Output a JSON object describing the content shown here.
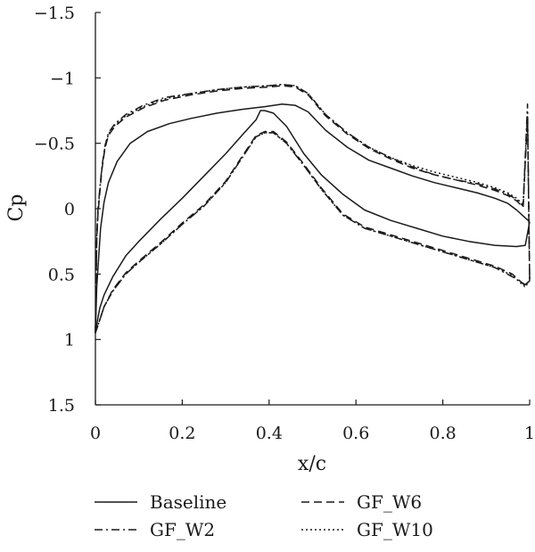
{
  "chart_data": {
    "type": "line",
    "xlabel": "x/c",
    "ylabel": "Cp",
    "xlim": [
      0,
      1
    ],
    "ylim": [
      1.5,
      -1.5
    ],
    "y_inverted": true,
    "xticks": [
      "0",
      "0.2",
      "0.4",
      "0.6",
      "0.8",
      "1"
    ],
    "yticks": [
      "−1.5",
      "−1",
      "−0.5",
      "0",
      "0.5",
      "1",
      "1.5"
    ],
    "grid": false,
    "legend_position": "bottom",
    "series": [
      {
        "name": "Baseline",
        "dash": "solid",
        "upper": [
          [
            0,
            0.95
          ],
          [
            0.003,
            0.6
          ],
          [
            0.007,
            0.4
          ],
          [
            0.012,
            0.15
          ],
          [
            0.02,
            -0.05
          ],
          [
            0.03,
            -0.2
          ],
          [
            0.05,
            -0.36
          ],
          [
            0.08,
            -0.5
          ],
          [
            0.12,
            -0.59
          ],
          [
            0.17,
            -0.65
          ],
          [
            0.22,
            -0.69
          ],
          [
            0.28,
            -0.73
          ],
          [
            0.34,
            -0.76
          ],
          [
            0.39,
            -0.78
          ],
          [
            0.43,
            -0.8
          ],
          [
            0.46,
            -0.79
          ],
          [
            0.49,
            -0.74
          ],
          [
            0.53,
            -0.6
          ],
          [
            0.58,
            -0.47
          ],
          [
            0.63,
            -0.37
          ],
          [
            0.68,
            -0.31
          ],
          [
            0.73,
            -0.25
          ],
          [
            0.78,
            -0.2
          ],
          [
            0.83,
            -0.16
          ],
          [
            0.88,
            -0.12
          ],
          [
            0.92,
            -0.08
          ],
          [
            0.95,
            -0.04
          ],
          [
            0.97,
            0.01
          ],
          [
            0.99,
            0.07
          ],
          [
            1,
            0.1
          ]
        ],
        "lower": [
          [
            0,
            0.95
          ],
          [
            0.005,
            0.85
          ],
          [
            0.01,
            0.76
          ],
          [
            0.02,
            0.66
          ],
          [
            0.04,
            0.52
          ],
          [
            0.07,
            0.36
          ],
          [
            0.1,
            0.25
          ],
          [
            0.15,
            0.08
          ],
          [
            0.2,
            -0.08
          ],
          [
            0.25,
            -0.25
          ],
          [
            0.3,
            -0.42
          ],
          [
            0.34,
            -0.57
          ],
          [
            0.37,
            -0.68
          ],
          [
            0.38,
            -0.75
          ],
          [
            0.39,
            -0.75
          ],
          [
            0.41,
            -0.73
          ],
          [
            0.44,
            -0.63
          ],
          [
            0.48,
            -0.42
          ],
          [
            0.52,
            -0.26
          ],
          [
            0.57,
            -0.11
          ],
          [
            0.62,
            0.01
          ],
          [
            0.68,
            0.09
          ],
          [
            0.74,
            0.15
          ],
          [
            0.8,
            0.21
          ],
          [
            0.86,
            0.25
          ],
          [
            0.92,
            0.28
          ],
          [
            0.97,
            0.29
          ],
          [
            0.99,
            0.28
          ],
          [
            1,
            0.1
          ]
        ]
      },
      {
        "name": "GF_W2",
        "dash": "dash-dot",
        "upper": [
          [
            0,
            0.95
          ],
          [
            0.003,
            0.2
          ],
          [
            0.006,
            0.0
          ],
          [
            0.01,
            -0.15
          ],
          [
            0.015,
            -0.32
          ],
          [
            0.022,
            -0.48
          ],
          [
            0.03,
            -0.58
          ],
          [
            0.045,
            -0.65
          ],
          [
            0.07,
            -0.72
          ],
          [
            0.11,
            -0.79
          ],
          [
            0.16,
            -0.85
          ],
          [
            0.22,
            -0.88
          ],
          [
            0.28,
            -0.91
          ],
          [
            0.34,
            -0.93
          ],
          [
            0.4,
            -0.94
          ],
          [
            0.43,
            -0.95
          ],
          [
            0.46,
            -0.94
          ],
          [
            0.49,
            -0.88
          ],
          [
            0.53,
            -0.72
          ],
          [
            0.58,
            -0.58
          ],
          [
            0.63,
            -0.47
          ],
          [
            0.68,
            -0.39
          ],
          [
            0.73,
            -0.32
          ],
          [
            0.78,
            -0.26
          ],
          [
            0.83,
            -0.22
          ],
          [
            0.88,
            -0.19
          ],
          [
            0.92,
            -0.15
          ],
          [
            0.95,
            -0.11
          ],
          [
            0.97,
            -0.07
          ],
          [
            0.985,
            -0.02
          ],
          [
            0.995,
            -0.8
          ],
          [
            1,
            0.55
          ]
        ],
        "lower": [
          [
            0,
            0.95
          ],
          [
            0.005,
            0.9
          ],
          [
            0.01,
            0.85
          ],
          [
            0.02,
            0.75
          ],
          [
            0.04,
            0.63
          ],
          [
            0.07,
            0.5
          ],
          [
            0.1,
            0.41
          ],
          [
            0.15,
            0.27
          ],
          [
            0.2,
            0.12
          ],
          [
            0.25,
            -0.02
          ],
          [
            0.3,
            -0.2
          ],
          [
            0.34,
            -0.4
          ],
          [
            0.37,
            -0.55
          ],
          [
            0.39,
            -0.58
          ],
          [
            0.41,
            -0.58
          ],
          [
            0.44,
            -0.5
          ],
          [
            0.48,
            -0.33
          ],
          [
            0.52,
            -0.15
          ],
          [
            0.57,
            0.05
          ],
          [
            0.62,
            0.15
          ],
          [
            0.68,
            0.21
          ],
          [
            0.74,
            0.27
          ],
          [
            0.8,
            0.33
          ],
          [
            0.86,
            0.39
          ],
          [
            0.92,
            0.45
          ],
          [
            0.96,
            0.52
          ],
          [
            0.99,
            0.58
          ],
          [
            1,
            0.55
          ]
        ]
      },
      {
        "name": "GF_W6",
        "dash": "dashed",
        "upper": [
          [
            0,
            0.95
          ],
          [
            0.003,
            0.25
          ],
          [
            0.006,
            0.04
          ],
          [
            0.01,
            -0.12
          ],
          [
            0.015,
            -0.3
          ],
          [
            0.022,
            -0.46
          ],
          [
            0.03,
            -0.56
          ],
          [
            0.045,
            -0.63
          ],
          [
            0.07,
            -0.7
          ],
          [
            0.11,
            -0.77
          ],
          [
            0.16,
            -0.83
          ],
          [
            0.22,
            -0.87
          ],
          [
            0.28,
            -0.9
          ],
          [
            0.34,
            -0.92
          ],
          [
            0.4,
            -0.93
          ],
          [
            0.43,
            -0.94
          ],
          [
            0.46,
            -0.93
          ],
          [
            0.49,
            -0.87
          ],
          [
            0.53,
            -0.71
          ],
          [
            0.58,
            -0.57
          ],
          [
            0.63,
            -0.46
          ],
          [
            0.68,
            -0.38
          ],
          [
            0.73,
            -0.31
          ],
          [
            0.78,
            -0.26
          ],
          [
            0.83,
            -0.22
          ],
          [
            0.88,
            -0.18
          ],
          [
            0.92,
            -0.14
          ],
          [
            0.95,
            -0.1
          ],
          [
            0.97,
            -0.06
          ],
          [
            0.985,
            -0.01
          ],
          [
            0.995,
            -0.7
          ],
          [
            1,
            0.55
          ]
        ],
        "lower": [
          [
            0,
            0.95
          ],
          [
            0.005,
            0.9
          ],
          [
            0.01,
            0.85
          ],
          [
            0.02,
            0.75
          ],
          [
            0.04,
            0.62
          ],
          [
            0.07,
            0.49
          ],
          [
            0.1,
            0.4
          ],
          [
            0.15,
            0.26
          ],
          [
            0.2,
            0.11
          ],
          [
            0.25,
            -0.03
          ],
          [
            0.3,
            -0.21
          ],
          [
            0.34,
            -0.41
          ],
          [
            0.37,
            -0.56
          ],
          [
            0.39,
            -0.59
          ],
          [
            0.41,
            -0.59
          ],
          [
            0.44,
            -0.51
          ],
          [
            0.48,
            -0.34
          ],
          [
            0.52,
            -0.16
          ],
          [
            0.57,
            0.04
          ],
          [
            0.62,
            0.14
          ],
          [
            0.68,
            0.2
          ],
          [
            0.74,
            0.26
          ],
          [
            0.8,
            0.32
          ],
          [
            0.86,
            0.38
          ],
          [
            0.92,
            0.44
          ],
          [
            0.96,
            0.5
          ],
          [
            0.99,
            0.59
          ],
          [
            1,
            0.55
          ]
        ]
      },
      {
        "name": "GF_W10",
        "dash": "dotted",
        "upper": [
          [
            0,
            0.95
          ],
          [
            0.003,
            0.22
          ],
          [
            0.006,
            0.02
          ],
          [
            0.01,
            -0.14
          ],
          [
            0.015,
            -0.31
          ],
          [
            0.022,
            -0.47
          ],
          [
            0.03,
            -0.57
          ],
          [
            0.045,
            -0.64
          ],
          [
            0.07,
            -0.71
          ],
          [
            0.11,
            -0.78
          ],
          [
            0.16,
            -0.84
          ],
          [
            0.22,
            -0.88
          ],
          [
            0.28,
            -0.91
          ],
          [
            0.34,
            -0.93
          ],
          [
            0.4,
            -0.94
          ],
          [
            0.43,
            -0.95
          ],
          [
            0.46,
            -0.94
          ],
          [
            0.49,
            -0.88
          ],
          [
            0.53,
            -0.72
          ],
          [
            0.58,
            -0.58
          ],
          [
            0.63,
            -0.47
          ],
          [
            0.68,
            -0.39
          ],
          [
            0.73,
            -0.33
          ],
          [
            0.78,
            -0.28
          ],
          [
            0.83,
            -0.24
          ],
          [
            0.88,
            -0.2
          ],
          [
            0.92,
            -0.16
          ],
          [
            0.95,
            -0.12
          ],
          [
            0.97,
            -0.08
          ],
          [
            0.985,
            -0.03
          ],
          [
            0.995,
            -0.75
          ],
          [
            1,
            0.55
          ]
        ],
        "lower": [
          [
            0,
            0.95
          ],
          [
            0.005,
            0.9
          ],
          [
            0.01,
            0.85
          ],
          [
            0.02,
            0.75
          ],
          [
            0.04,
            0.63
          ],
          [
            0.07,
            0.5
          ],
          [
            0.1,
            0.41
          ],
          [
            0.15,
            0.27
          ],
          [
            0.2,
            0.12
          ],
          [
            0.25,
            -0.02
          ],
          [
            0.3,
            -0.2
          ],
          [
            0.34,
            -0.4
          ],
          [
            0.37,
            -0.55
          ],
          [
            0.39,
            -0.58
          ],
          [
            0.41,
            -0.58
          ],
          [
            0.44,
            -0.5
          ],
          [
            0.48,
            -0.33
          ],
          [
            0.52,
            -0.15
          ],
          [
            0.57,
            0.05
          ],
          [
            0.62,
            0.15
          ],
          [
            0.68,
            0.21
          ],
          [
            0.74,
            0.27
          ],
          [
            0.8,
            0.33
          ],
          [
            0.86,
            0.39
          ],
          [
            0.92,
            0.45
          ],
          [
            0.96,
            0.51
          ],
          [
            0.99,
            0.6
          ],
          [
            1,
            0.55
          ]
        ]
      }
    ]
  }
}
